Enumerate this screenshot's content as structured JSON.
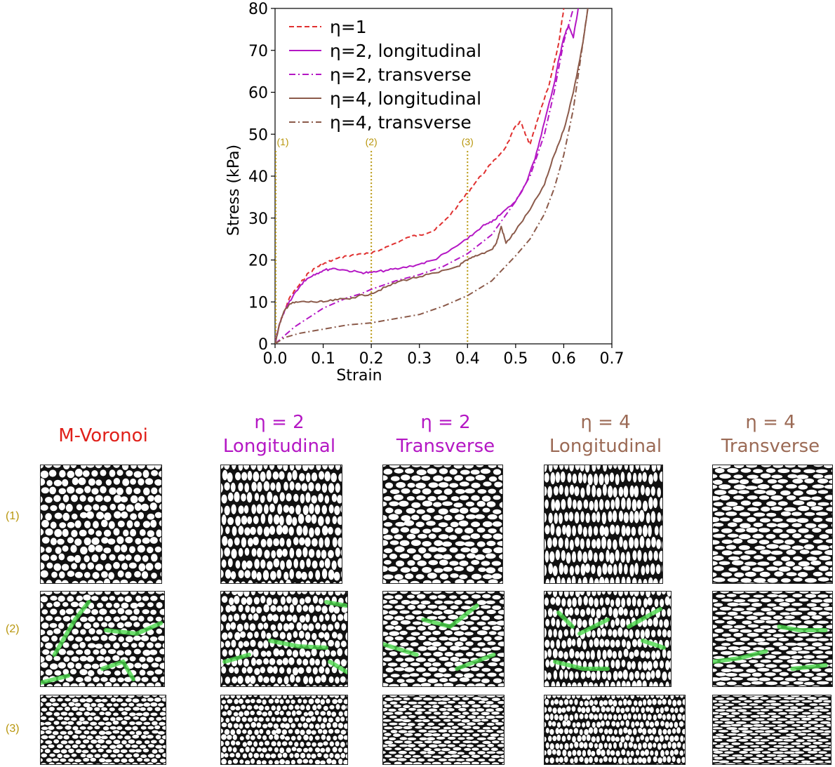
{
  "chart_data": {
    "type": "line",
    "xlabel": "Strain",
    "ylabel": "Stress (kPa)",
    "xlim": [
      0.0,
      0.7
    ],
    "ylim": [
      0,
      80
    ],
    "xticks": [
      "0.0",
      "0.1",
      "0.2",
      "0.3",
      "0.4",
      "0.5",
      "0.6",
      "0.7"
    ],
    "yticks": [
      "0",
      "10",
      "20",
      "30",
      "40",
      "50",
      "60",
      "70",
      "80"
    ],
    "grid": false,
    "legend_position": "top-left",
    "markers": [
      {
        "label": "(1)",
        "x": 0.0
      },
      {
        "label": "(2)",
        "x": 0.2
      },
      {
        "label": "(3)",
        "x": 0.4
      }
    ],
    "series": [
      {
        "name": "η=1",
        "style": "dashed",
        "color": "#e03030",
        "x": [
          0,
          0.01,
          0.02,
          0.03,
          0.05,
          0.07,
          0.09,
          0.1,
          0.12,
          0.15,
          0.18,
          0.2,
          0.22,
          0.25,
          0.28,
          0.3,
          0.33,
          0.35,
          0.38,
          0.4,
          0.42,
          0.45,
          0.48,
          0.5,
          0.51,
          0.52,
          0.53,
          0.55,
          0.57,
          0.59,
          0.6
        ],
        "y": [
          0,
          5,
          8,
          11,
          14,
          17,
          18.5,
          19,
          20,
          21,
          21.5,
          21.5,
          22.5,
          24,
          25.5,
          26,
          27,
          29,
          33,
          36,
          39,
          43,
          47,
          52,
          53,
          50,
          47.5,
          55,
          62,
          72,
          80
        ]
      },
      {
        "name": "η=2, longitudinal",
        "style": "solid",
        "color": "#b417c4",
        "x": [
          0,
          0.01,
          0.02,
          0.04,
          0.06,
          0.08,
          0.1,
          0.12,
          0.15,
          0.18,
          0.2,
          0.23,
          0.26,
          0.3,
          0.33,
          0.36,
          0.4,
          0.43,
          0.45,
          0.47,
          0.5,
          0.52,
          0.54,
          0.56,
          0.58,
          0.59,
          0.6,
          0.61,
          0.62,
          0.63
        ],
        "y": [
          0,
          5,
          8,
          12,
          15,
          16.5,
          17.5,
          18,
          17.5,
          17,
          17,
          17.5,
          18,
          19,
          20,
          22,
          25,
          28,
          29,
          31,
          34,
          38,
          44,
          53,
          62,
          68,
          73,
          76,
          73,
          80
        ]
      },
      {
        "name": "η=2, transverse",
        "style": "dashdot",
        "color": "#b417c4",
        "x": [
          0,
          0.02,
          0.04,
          0.06,
          0.08,
          0.1,
          0.12,
          0.15,
          0.18,
          0.2,
          0.25,
          0.3,
          0.35,
          0.4,
          0.45,
          0.5,
          0.53,
          0.56,
          0.58,
          0.6,
          0.61,
          0.62
        ],
        "y": [
          0,
          2,
          4,
          5.5,
          7,
          8.5,
          9.5,
          11,
          12,
          13,
          15,
          16.5,
          18.5,
          21.5,
          26,
          34,
          40,
          50,
          60,
          72,
          76,
          80
        ]
      },
      {
        "name": "η=4, longitudinal",
        "style": "solid",
        "color": "#8b5a4a",
        "x": [
          0,
          0.01,
          0.02,
          0.03,
          0.05,
          0.08,
          0.1,
          0.13,
          0.16,
          0.2,
          0.23,
          0.26,
          0.3,
          0.34,
          0.38,
          0.4,
          0.42,
          0.45,
          0.46,
          0.47,
          0.48,
          0.5,
          0.53,
          0.56,
          0.58,
          0.6,
          0.62,
          0.64,
          0.65
        ],
        "y": [
          0,
          5,
          8,
          9.5,
          10,
          10,
          10,
          10.5,
          11,
          12,
          13.5,
          15,
          16,
          17,
          18.5,
          20,
          21,
          22.5,
          24,
          28,
          24,
          27,
          32,
          38,
          45,
          51,
          60,
          72,
          80
        ]
      },
      {
        "name": "η=4, transverse",
        "style": "dashdot",
        "color": "#8b5a4a",
        "x": [
          0,
          0.02,
          0.05,
          0.1,
          0.15,
          0.2,
          0.25,
          0.3,
          0.35,
          0.4,
          0.45,
          0.5,
          0.53,
          0.56,
          0.58,
          0.6,
          0.62,
          0.64,
          0.65
        ],
        "y": [
          0,
          1.5,
          2.5,
          3.5,
          4.5,
          5,
          6,
          7,
          9,
          11.5,
          15,
          21,
          25,
          31,
          37,
          45,
          56,
          72,
          80
        ]
      }
    ]
  },
  "row_labels": [
    "(1)",
    "(2)",
    "(3)"
  ],
  "columns": [
    {
      "line1": "M-Voronoi",
      "line2": "",
      "color": "#e0201a",
      "ar": 1.0
    },
    {
      "line1": "η = 2",
      "line2": "Longitudinal",
      "color": "#b417c4",
      "ar": 1.7
    },
    {
      "line1": "η = 2",
      "line2": "Transverse",
      "color": "#b417c4",
      "ar": 0.6
    },
    {
      "line1": "η = 4",
      "line2": "Longitudinal",
      "color": "#9b6a55",
      "ar": 2.4
    },
    {
      "line1": "η = 4",
      "line2": "Transverse",
      "color": "#9b6a55",
      "ar": 0.42
    }
  ]
}
